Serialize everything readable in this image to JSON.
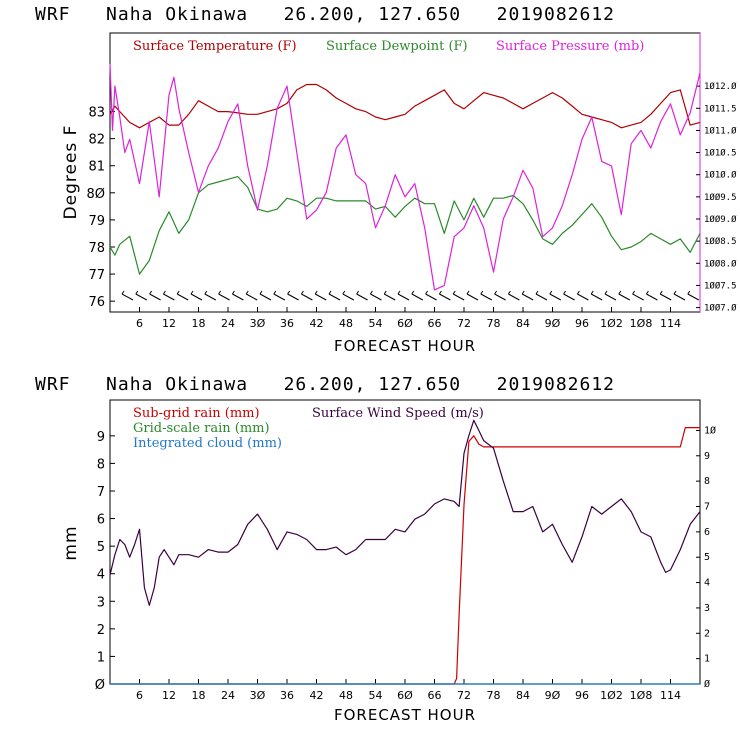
{
  "colors": {
    "temperature": "#b00000",
    "dewpoint": "#2a8a2a",
    "pressure": "#dd22dd",
    "subgrid_rain": "#cc0000",
    "gridscale_rain": "#2a8a2a",
    "cloud": "#2277cc",
    "wind": "#3a0040"
  },
  "chart_data": [
    {
      "type": "line",
      "title": "WRF   Naha Okinawa   26.200, 127.650   2019082612",
      "xlabel": "FORECAST HOUR",
      "ylabel": "Degrees F",
      "xlim": [
        0,
        120
      ],
      "ylim": [
        75.6,
        85.9
      ],
      "y2lim": [
        1006.9,
        1013.2
      ],
      "xticks": [
        6,
        12,
        18,
        24,
        30,
        36,
        42,
        48,
        54,
        60,
        66,
        72,
        78,
        84,
        90,
        96,
        102,
        108,
        114
      ],
      "xtick_labels": [
        "6",
        "12",
        "18",
        "24",
        "3Ø",
        "36",
        "42",
        "48",
        "54",
        "6Ø",
        "66",
        "72",
        "78",
        "84",
        "9Ø",
        "96",
        "1Ø2",
        "1Ø8",
        "114"
      ],
      "yticks": [
        76,
        77,
        78,
        79,
        80,
        81,
        82,
        83
      ],
      "ytick_labels": [
        "76",
        "77",
        "78",
        "79",
        "8Ø",
        "81",
        "82",
        "83"
      ],
      "y2ticks": [
        1007.0,
        1007.5,
        1008.0,
        1008.5,
        1009.0,
        1009.5,
        1010.0,
        1010.5,
        1011.0,
        1011.5,
        1012.0
      ],
      "y2tick_labels": [
        "1ØØ7.Ø",
        "1ØØ7.5",
        "1ØØ8.Ø",
        "1ØØ8.5",
        "1ØØ9.Ø",
        "1ØØ9.5",
        "1Ø1Ø.Ø",
        "1Ø1Ø.5",
        "1Ø11.Ø",
        "1Ø11.5",
        "1Ø12.Ø"
      ],
      "legend": [
        "Surface Temperature (F)",
        "Surface Dewpoint (F)",
        "Surface Pressure (mb)"
      ],
      "series": [
        {
          "name": "Surface Temperature (F)",
          "x": [
            0,
            1,
            2,
            4,
            6,
            8,
            10,
            12,
            14,
            16,
            18,
            20,
            22,
            24,
            26,
            28,
            30,
            32,
            34,
            36,
            38,
            40,
            42,
            44,
            46,
            48,
            50,
            52,
            54,
            56,
            58,
            60,
            62,
            64,
            66,
            68,
            70,
            72,
            74,
            76,
            78,
            80,
            82,
            84,
            86,
            88,
            90,
            92,
            94,
            96,
            98,
            100,
            102,
            104,
            106,
            108,
            110,
            112,
            114,
            116,
            118,
            120
          ],
          "values": [
            82.9,
            83.2,
            83.0,
            82.6,
            82.4,
            82.6,
            82.8,
            82.5,
            82.5,
            82.9,
            83.4,
            83.2,
            83.0,
            83.0,
            82.95,
            82.9,
            82.9,
            83.0,
            83.1,
            83.3,
            83.8,
            84.0,
            84.0,
            83.8,
            83.5,
            83.3,
            83.1,
            83.0,
            82.8,
            82.7,
            82.8,
            82.9,
            83.2,
            83.4,
            83.6,
            83.8,
            83.3,
            83.1,
            83.4,
            83.7,
            83.6,
            83.5,
            83.3,
            83.1,
            83.3,
            83.5,
            83.7,
            83.5,
            83.2,
            82.9,
            82.8,
            82.7,
            82.6,
            82.4,
            82.5,
            82.6,
            82.9,
            83.3,
            83.7,
            83.8,
            82.5,
            82.6
          ]
        },
        {
          "name": "Surface Dewpoint (F)",
          "x": [
            0,
            1,
            2,
            4,
            6,
            8,
            10,
            12,
            14,
            16,
            18,
            20,
            22,
            24,
            26,
            28,
            30,
            32,
            34,
            36,
            38,
            40,
            42,
            44,
            46,
            48,
            50,
            52,
            54,
            56,
            58,
            60,
            62,
            64,
            66,
            68,
            70,
            72,
            74,
            76,
            78,
            80,
            82,
            84,
            86,
            88,
            90,
            92,
            94,
            96,
            98,
            100,
            102,
            104,
            106,
            108,
            110,
            112,
            114,
            116,
            118,
            120
          ],
          "values": [
            78.0,
            77.7,
            78.1,
            78.4,
            77.0,
            77.5,
            78.6,
            79.3,
            78.5,
            79.0,
            80.0,
            80.3,
            80.4,
            80.5,
            80.6,
            80.2,
            79.4,
            79.3,
            79.4,
            79.8,
            79.7,
            79.5,
            79.8,
            79.8,
            79.7,
            79.7,
            79.7,
            79.7,
            79.4,
            79.5,
            79.1,
            79.5,
            79.8,
            79.6,
            79.6,
            78.5,
            79.7,
            79.0,
            79.8,
            79.1,
            79.8,
            79.8,
            79.9,
            79.6,
            79.0,
            78.3,
            78.1,
            78.5,
            78.8,
            79.2,
            79.6,
            79.1,
            78.4,
            77.9,
            78.0,
            78.2,
            78.5,
            78.3,
            78.1,
            78.3,
            77.8,
            78.5
          ]
        },
        {
          "name": "Surface Pressure (mb)",
          "axis": "y2",
          "x": [
            0,
            0.5,
            1,
            2,
            3,
            4,
            6,
            8,
            10,
            12,
            13,
            14,
            16,
            18,
            20,
            22,
            24,
            26,
            28,
            30,
            32,
            34,
            36,
            38,
            40,
            42,
            44,
            46,
            48,
            50,
            52,
            54,
            56,
            58,
            60,
            62,
            64,
            66,
            68,
            70,
            72,
            74,
            76,
            78,
            80,
            82,
            84,
            86,
            88,
            90,
            92,
            94,
            96,
            98,
            100,
            102,
            104,
            106,
            108,
            110,
            112,
            114,
            116,
            118,
            120
          ],
          "values": [
            1012.5,
            1011.0,
            1012.0,
            1011.3,
            1010.5,
            1010.8,
            1009.8,
            1011.2,
            1009.5,
            1011.8,
            1012.2,
            1011.5,
            1010.5,
            1009.6,
            1010.2,
            1010.6,
            1011.2,
            1011.6,
            1010.2,
            1009.2,
            1010.2,
            1011.5,
            1012.0,
            1010.5,
            1009.0,
            1009.2,
            1009.6,
            1010.6,
            1010.9,
            1010.0,
            1009.8,
            1008.8,
            1009.3,
            1010.0,
            1009.5,
            1009.8,
            1008.8,
            1007.4,
            1007.5,
            1008.6,
            1008.8,
            1009.3,
            1008.8,
            1007.8,
            1009.0,
            1009.5,
            1010.1,
            1009.7,
            1008.6,
            1008.8,
            1009.3,
            1010.0,
            1010.8,
            1011.3,
            1010.3,
            1010.2,
            1009.1,
            1010.7,
            1011.0,
            1010.6,
            1011.2,
            1011.6,
            1010.9,
            1011.4,
            1012.3
          ]
        }
      ]
    },
    {
      "type": "line",
      "title": "WRF   Naha Okinawa   26.200, 127.650   2019082612",
      "xlabel": "FORECAST HOUR",
      "ylabel": "mm",
      "xlim": [
        0,
        120
      ],
      "ylim": [
        0,
        10.3
      ],
      "y2lim": [
        0,
        11.2
      ],
      "xticks": [
        6,
        12,
        18,
        24,
        30,
        36,
        42,
        48,
        54,
        60,
        66,
        72,
        78,
        84,
        90,
        96,
        102,
        108,
        114
      ],
      "xtick_labels": [
        "6",
        "12",
        "18",
        "24",
        "3Ø",
        "36",
        "42",
        "48",
        "54",
        "6Ø",
        "66",
        "72",
        "78",
        "84",
        "9Ø",
        "96",
        "1Ø2",
        "1Ø8",
        "114"
      ],
      "yticks": [
        0,
        1,
        2,
        3,
        4,
        5,
        6,
        7,
        8,
        9
      ],
      "ytick_labels": [
        "Ø",
        "1",
        "2",
        "3",
        "4",
        "5",
        "6",
        "7",
        "8",
        "9"
      ],
      "y2ticks": [
        0,
        1,
        2,
        3,
        4,
        5,
        6,
        7,
        8,
        9,
        10
      ],
      "y2tick_labels": [
        "Ø",
        "1",
        "2",
        "3",
        "4",
        "5",
        "6",
        "7",
        "8",
        "9",
        "1Ø"
      ],
      "legend": [
        "Sub-grid rain (mm)",
        "Grid-scale rain (mm)",
        "Integrated cloud (mm)",
        "Surface Wind Speed (m/s)"
      ],
      "series": [
        {
          "name": "Sub-grid rain (mm)",
          "x": [
            0,
            70,
            70.5,
            71,
            72,
            73,
            74,
            75,
            76,
            116,
            117,
            120
          ],
          "values": [
            0,
            0,
            0.2,
            2.5,
            6.5,
            8.8,
            9.0,
            8.7,
            8.6,
            8.6,
            9.3,
            9.3
          ]
        },
        {
          "name": "Grid-scale rain (mm)",
          "x": [
            0,
            120
          ],
          "values": [
            0,
            0
          ]
        },
        {
          "name": "Integrated cloud (mm)",
          "x": [
            0,
            120
          ],
          "values": [
            0,
            0
          ]
        },
        {
          "name": "Surface Wind Speed (m/s)",
          "axis": "y2",
          "x": [
            0,
            1,
            2,
            3,
            4,
            5,
            6,
            7,
            8,
            9,
            10,
            11,
            12,
            13,
            14,
            16,
            18,
            20,
            22,
            24,
            26,
            28,
            30,
            32,
            34,
            36,
            38,
            40,
            42,
            44,
            46,
            48,
            50,
            52,
            54,
            56,
            58,
            60,
            62,
            64,
            66,
            68,
            70,
            71,
            72,
            73,
            74,
            75,
            76,
            78,
            80,
            82,
            84,
            86,
            88,
            90,
            92,
            94,
            96,
            98,
            100,
            102,
            104,
            106,
            108,
            110,
            112,
            113,
            114,
            116,
            118,
            120
          ],
          "values": [
            4.3,
            5.1,
            5.7,
            5.5,
            5.0,
            5.5,
            6.1,
            3.8,
            3.1,
            3.8,
            5.0,
            5.3,
            5.0,
            4.7,
            5.1,
            5.1,
            5.0,
            5.3,
            5.2,
            5.2,
            5.5,
            6.3,
            6.7,
            6.1,
            5.3,
            6.0,
            5.9,
            5.7,
            5.3,
            5.3,
            5.4,
            5.1,
            5.3,
            5.7,
            5.7,
            5.7,
            6.1,
            6.0,
            6.5,
            6.7,
            7.1,
            7.3,
            7.2,
            7.0,
            9.1,
            9.8,
            10.4,
            10.0,
            9.6,
            9.3,
            8.0,
            6.8,
            6.8,
            7.0,
            6.0,
            6.3,
            5.5,
            4.8,
            5.8,
            7.0,
            6.7,
            7.0,
            7.3,
            6.8,
            6.0,
            5.8,
            4.8,
            4.4,
            4.5,
            5.3,
            6.3,
            6.8
          ]
        }
      ]
    }
  ]
}
